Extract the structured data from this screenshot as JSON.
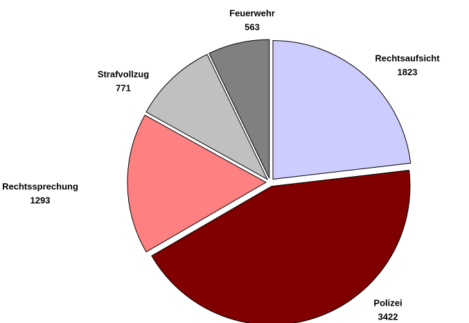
{
  "chart_data": {
    "type": "pie",
    "categories": [
      "Rechtsaufsicht",
      "Polizei",
      "Rechtssprechung",
      "Strafvollzug",
      "Feuerwehr"
    ],
    "values": [
      1823,
      3422,
      1293,
      771,
      563
    ],
    "colors": [
      "#ccccff",
      "#800000",
      "#ff8080",
      "#c0c0c0",
      "#808080"
    ],
    "start_angle": 0,
    "direction": "clockwise",
    "exploded": true
  }
}
